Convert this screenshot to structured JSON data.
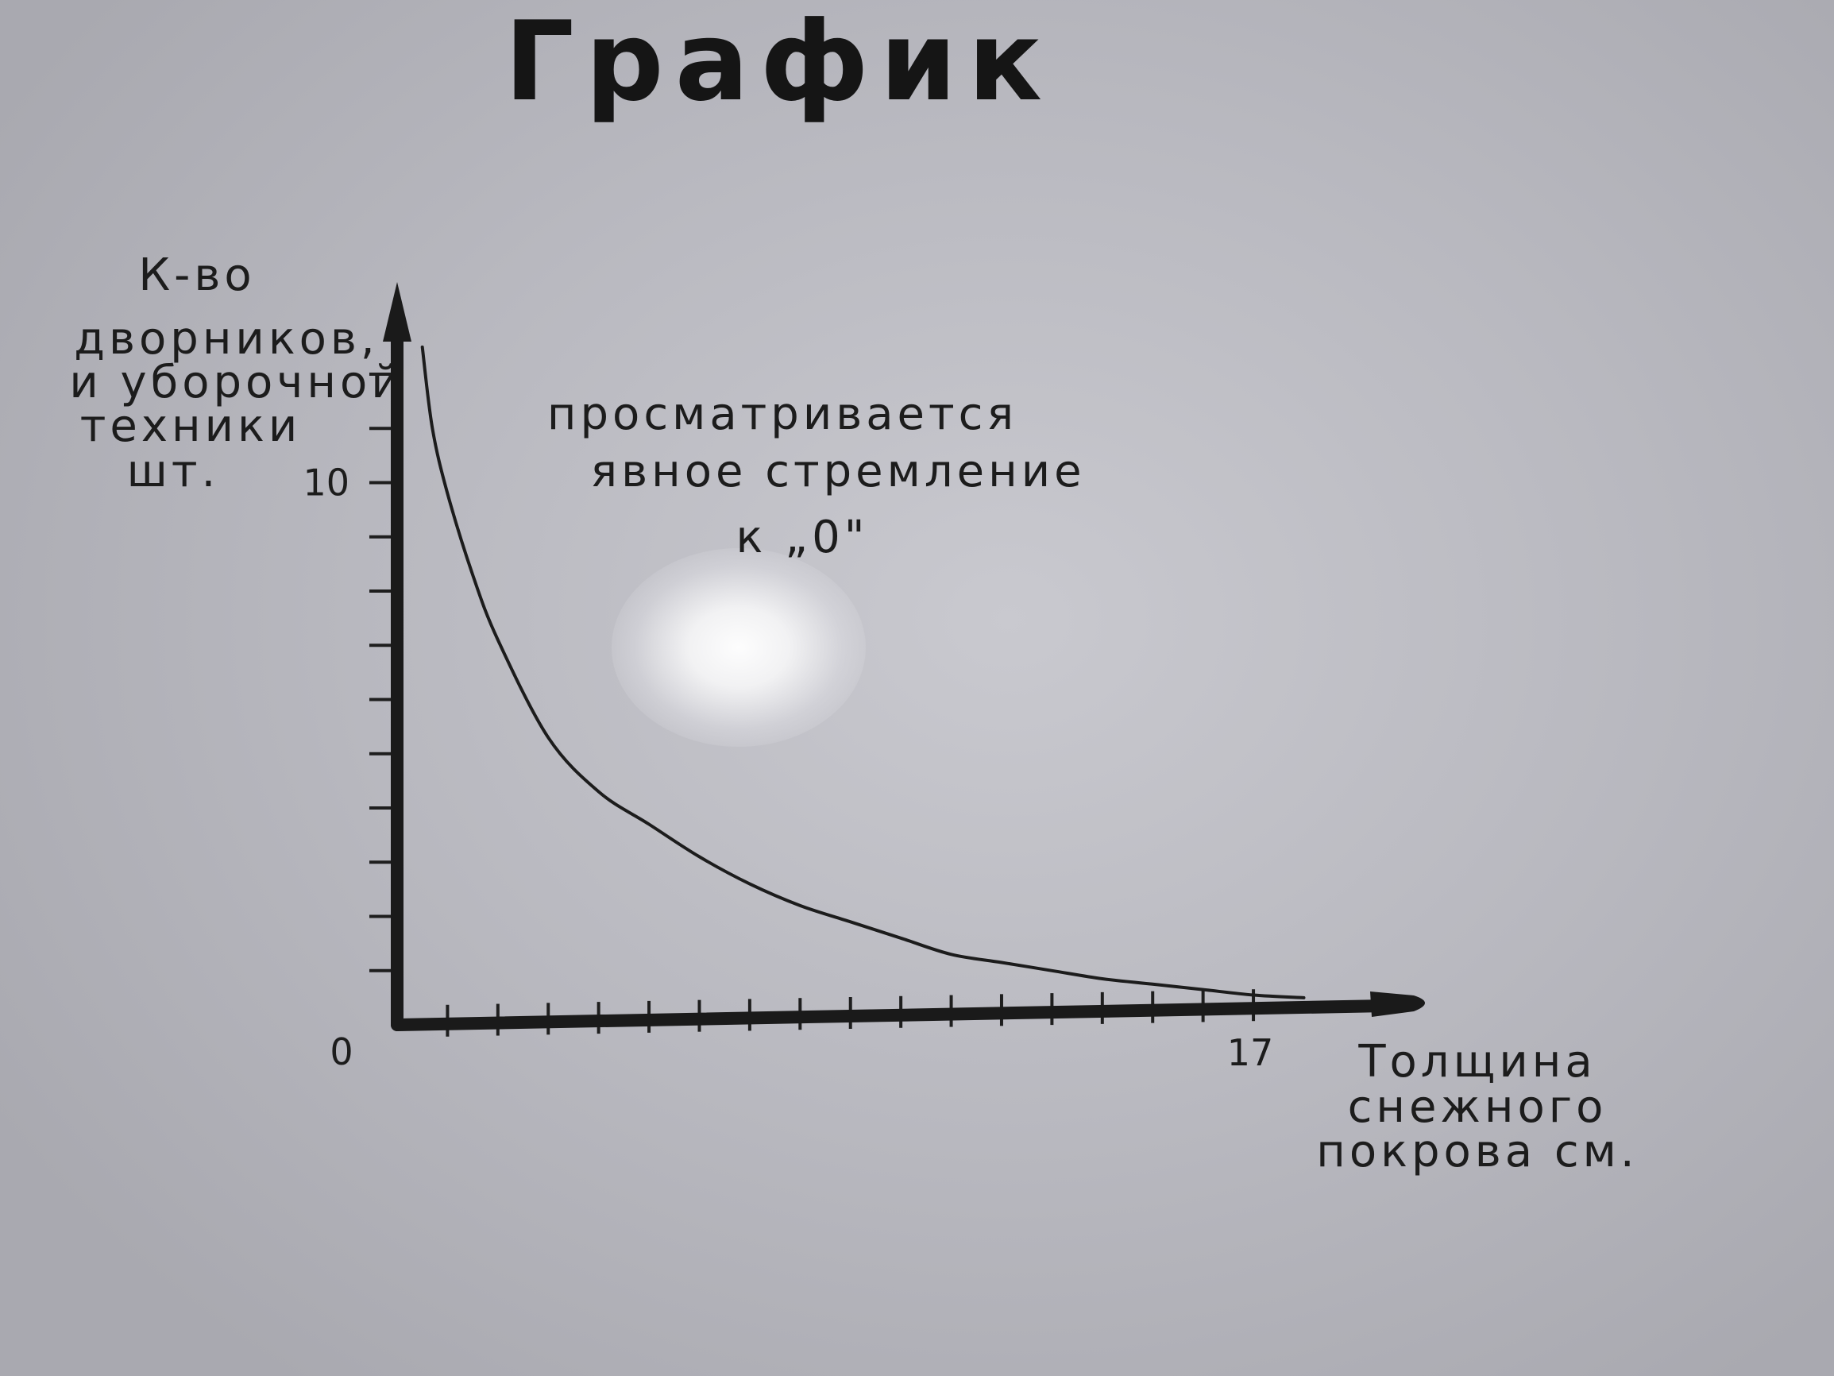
{
  "chart_data": {
    "type": "line",
    "title": "График",
    "ylabel": [
      "К-во",
      "дворников,",
      "и уборочной",
      "техники",
      "шт."
    ],
    "xlabel": [
      "Толщина",
      "снежного",
      "покрова см."
    ],
    "annotation": [
      "просматривается",
      "явное стремление",
      "к „0\""
    ],
    "origin_label": "0",
    "y_tick_labels": [
      {
        "value": 10,
        "label": "10"
      }
    ],
    "x_tick_labels": [
      {
        "value": 17,
        "label": "17"
      }
    ],
    "x_ticks": [
      1,
      2,
      3,
      4,
      5,
      6,
      7,
      8,
      9,
      10,
      11,
      12,
      13,
      14,
      15,
      16,
      17
    ],
    "y_ticks": [
      1,
      2,
      3,
      4,
      5,
      6,
      7,
      8,
      9,
      10,
      11,
      12
    ],
    "xlim": [
      0,
      20.5
    ],
    "ylim": [
      0,
      13.7
    ],
    "series": [
      {
        "x": [
          0.5,
          0.7,
          1.0,
          1.5,
          2.0,
          3.0,
          4.0,
          5.0,
          6.0,
          7.0,
          8.0,
          9.0,
          10.0,
          11.0,
          12.0,
          13.0,
          14.0,
          15.0,
          16.0,
          17.0,
          18.0
        ],
        "y": [
          12.5,
          11.0,
          9.8,
          8.3,
          7.1,
          5.3,
          4.3,
          3.7,
          3.1,
          2.6,
          2.2,
          1.9,
          1.6,
          1.3,
          1.15,
          1.0,
          0.85,
          0.75,
          0.65,
          0.55,
          0.5
        ]
      }
    ]
  }
}
